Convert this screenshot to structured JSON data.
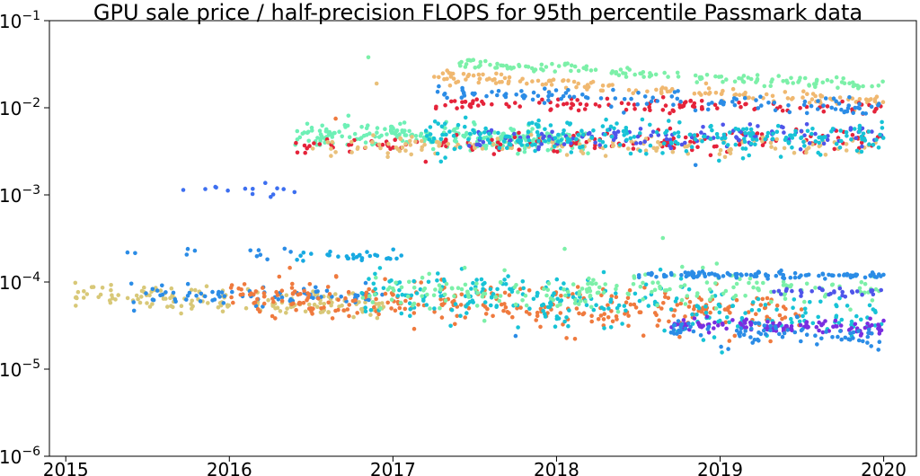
{
  "chart_data": {
    "type": "scatter",
    "title": "GPU sale price / half-precision FLOPS for 95th percentile Passmark data",
    "xlabel": "",
    "ylabel": "",
    "xlim": [
      2014.9,
      2020.2
    ],
    "ylim": [
      1e-06,
      0.1
    ],
    "yscale": "log",
    "grid": false,
    "legend": "none",
    "x_ticks": [
      {
        "value": 2015,
        "label": "2015"
      },
      {
        "value": 2016,
        "label": "2016"
      },
      {
        "value": 2017,
        "label": "2017"
      },
      {
        "value": 2018,
        "label": "2018"
      },
      {
        "value": 2019,
        "label": "2019"
      },
      {
        "value": 2020,
        "label": "2020"
      }
    ],
    "y_ticks": [
      {
        "value": 1e-06,
        "base": "10",
        "exp": "−6"
      },
      {
        "value": 1e-05,
        "base": "10",
        "exp": "−5"
      },
      {
        "value": 0.0001,
        "base": "10",
        "exp": "−4"
      },
      {
        "value": 0.001,
        "base": "10",
        "exp": "−3"
      },
      {
        "value": 0.01,
        "base": "10",
        "exp": "−2"
      },
      {
        "value": 0.1,
        "base": "10",
        "exp": "−1"
      }
    ],
    "series": [
      {
        "color": "#d8c878",
        "x_range": [
          2015.05,
          2016.95
        ],
        "center": 6.2e-05,
        "drift": -0.05,
        "spread": 0.07,
        "count": 160
      },
      {
        "color": "#2b8ce6",
        "x_range": [
          2015.35,
          2016.4
        ],
        "center": 0.00022,
        "drift": -0.02,
        "spread": 0.03,
        "count": 12
      },
      {
        "color": "#3d6ff0",
        "x_range": [
          2015.7,
          2016.4
        ],
        "center": 0.00115,
        "drift": -0.02,
        "spread": 0.04,
        "count": 14
      },
      {
        "color": "#2b8ce6",
        "x_range": [
          2015.4,
          2016.95
        ],
        "center": 7e-05,
        "drift": 0.0,
        "spread": 0.05,
        "count": 80
      },
      {
        "color": "#ef7a3e",
        "x_range": [
          2016.0,
          2019.5
        ],
        "center": 5.2e-05,
        "drift": -0.1,
        "spread": 0.12,
        "count": 320
      },
      {
        "color": "#17a9e1",
        "x_range": [
          2016.4,
          2017.1
        ],
        "center": 0.0002,
        "drift": 0.0,
        "spread": 0.03,
        "count": 30
      },
      {
        "color": "#6ef0b6",
        "x_range": [
          2016.4,
          2018.2
        ],
        "center": 0.0046,
        "drift": -0.04,
        "spread": 0.07,
        "count": 260
      },
      {
        "color": "#e5233a",
        "x_range": [
          2016.4,
          2020.0
        ],
        "center": 0.004,
        "drift": 0.06,
        "spread": 0.06,
        "count": 150
      },
      {
        "color": "#e9c07a",
        "x_range": [
          2016.5,
          2020.0
        ],
        "center": 0.0036,
        "drift": 0.0,
        "spread": 0.06,
        "count": 140
      },
      {
        "color": "#4f55ea",
        "x_range": [
          2017.4,
          2020.0
        ],
        "center": 0.0046,
        "drift": 0.03,
        "spread": 0.06,
        "count": 120
      },
      {
        "color": "#17c3d6",
        "x_range": [
          2017.2,
          2020.0
        ],
        "center": 0.0046,
        "drift": -0.02,
        "spread": 0.09,
        "count": 240
      },
      {
        "color": "#7cf0a8",
        "x_range": [
          2017.4,
          2020.0
        ],
        "center": 0.024,
        "drift": -0.14,
        "spread": 0.03,
        "count": 140
      },
      {
        "color": "#f0b870",
        "x_range": [
          2017.25,
          2020.0
        ],
        "center": 0.016,
        "drift": -0.16,
        "spread": 0.04,
        "count": 150
      },
      {
        "color": "#e5233a",
        "x_range": [
          2017.25,
          2020.0
        ],
        "center": 0.0105,
        "drift": -0.02,
        "spread": 0.04,
        "count": 110
      },
      {
        "color": "#2b8ce6",
        "x_range": [
          2017.25,
          2020.0
        ],
        "center": 0.012,
        "drift": -0.1,
        "spread": 0.05,
        "count": 120
      },
      {
        "color": "#17c3d6",
        "x_range": [
          2016.8,
          2020.0
        ],
        "center": 5.4e-05,
        "drift": -0.2,
        "spread": 0.14,
        "count": 260
      },
      {
        "color": "#7cf0a8",
        "x_range": [
          2016.8,
          2020.0
        ],
        "center": 8.2e-05,
        "drift": 0.04,
        "spread": 0.1,
        "count": 200
      },
      {
        "color": "#2b8ce6",
        "x_range": [
          2018.5,
          2020.0
        ],
        "center": 0.00012,
        "drift": 0.0,
        "spread": 0.02,
        "count": 110
      },
      {
        "color": "#4f55ea",
        "x_range": [
          2019.3,
          2020.0
        ],
        "center": 7.8e-05,
        "drift": 0.0,
        "spread": 0.02,
        "count": 30
      },
      {
        "color": "#7a2ee0",
        "x_range": [
          2018.7,
          2020.0
        ],
        "center": 3.1e-05,
        "drift": -0.02,
        "spread": 0.04,
        "count": 110
      },
      {
        "color": "#2b8ce6",
        "x_range": [
          2018.7,
          2020.0
        ],
        "center": 2.5e-05,
        "drift": -0.05,
        "spread": 0.06,
        "count": 80
      }
    ],
    "outliers": [
      {
        "x": 2016.85,
        "y": 0.038,
        "color": "#7cf0a8"
      },
      {
        "x": 2016.9,
        "y": 0.019,
        "color": "#e9c07a"
      },
      {
        "x": 2016.65,
        "y": 0.0075,
        "color": "#ef7a3e"
      },
      {
        "x": 2017.2,
        "y": 0.0024,
        "color": "#e5233a"
      },
      {
        "x": 2018.65,
        "y": 0.00032,
        "color": "#7cf0a8"
      },
      {
        "x": 2018.05,
        "y": 0.00024,
        "color": "#7cf0a8"
      },
      {
        "x": 2018.85,
        "y": 0.0022,
        "color": "#2b8ce6"
      },
      {
        "x": 2017.75,
        "y": 2.4e-05,
        "color": "#2b8ce6"
      },
      {
        "x": 2019.05,
        "y": 1.7e-05,
        "color": "#2b8ce6"
      }
    ]
  }
}
